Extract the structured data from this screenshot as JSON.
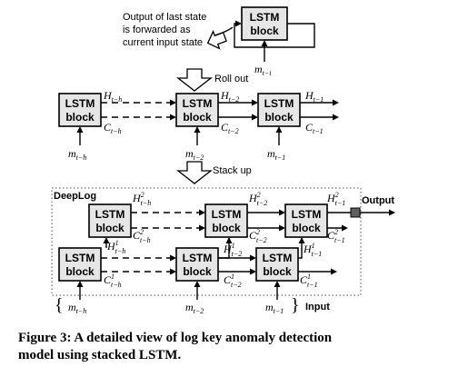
{
  "top": {
    "note_lines": [
      "Output of last state",
      "is forwarded as",
      "current input state"
    ],
    "block_label": [
      "LSTM",
      "block"
    ],
    "input": "m",
    "input_sub": "t−i"
  },
  "rollout": {
    "label": "Roll out",
    "blocks": [
      [
        "LSTM",
        "block"
      ],
      [
        "LSTM",
        "block"
      ],
      [
        "LSTM",
        "block"
      ]
    ],
    "h": [
      {
        "m": "H",
        "s": "t−h"
      },
      {
        "m": "H",
        "s": "t−2"
      },
      {
        "m": "H",
        "s": "t−1"
      }
    ],
    "c": [
      {
        "m": "C",
        "s": "t−h"
      },
      {
        "m": "C",
        "s": "t−2"
      },
      {
        "m": "C",
        "s": "t−1"
      }
    ],
    "m": [
      {
        "m": "m",
        "s": "t−h"
      },
      {
        "m": "m",
        "s": "t−2"
      },
      {
        "m": "m",
        "s": "t−1"
      }
    ]
  },
  "stack": {
    "label": "Stack up",
    "title": "DeepLog",
    "output": "Output",
    "input_label": "Input",
    "upper": {
      "h": [
        {
          "m": "H",
          "s": "t−h",
          "p": "2"
        },
        {
          "m": "H",
          "s": "t−2",
          "p": "2"
        },
        {
          "m": "H",
          "s": "t−1",
          "p": "2"
        }
      ],
      "c": [
        {
          "m": "C",
          "s": "t−h",
          "p": "2"
        },
        {
          "m": "C",
          "s": "t−2",
          "p": "2"
        },
        {
          "m": "C",
          "s": "t−1",
          "p": "2"
        }
      ]
    },
    "lower": {
      "h": [
        {
          "m": "H",
          "s": "t−h",
          "p": "1"
        },
        {
          "m": "H",
          "s": "t−2",
          "p": "1"
        },
        {
          "m": "H",
          "s": "t−1",
          "p": "1"
        }
      ],
      "c": [
        {
          "m": "C",
          "s": "t−h",
          "p": "1"
        },
        {
          "m": "C",
          "s": "t−2",
          "p": "1"
        },
        {
          "m": "C",
          "s": "t−1",
          "p": "1"
        }
      ]
    },
    "m": [
      {
        "m": "m",
        "s": "t−h"
      },
      {
        "m": "m",
        "s": "t−2"
      },
      {
        "m": "m",
        "s": "t−1"
      }
    ]
  },
  "caption": {
    "line1": "Figure 3:  A detailed view of log key anomaly detection",
    "line2": "model using stacked LSTM."
  }
}
